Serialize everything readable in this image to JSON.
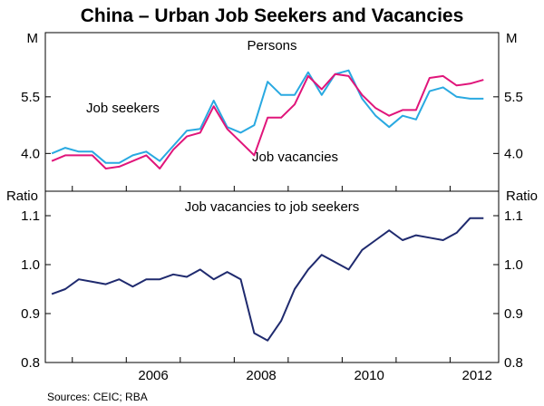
{
  "title": "China – Urban Job Seekers and Vacancies",
  "source": "Sources: CEIC; RBA",
  "colors": {
    "job_seekers": "#29a9e1",
    "job_vacancies": "#e0157a",
    "ratio": "#1f2a6e"
  },
  "chart_data": [
    {
      "type": "line",
      "panel_title": "Persons",
      "ylabel_left": "M",
      "ylabel_right": "M",
      "ylim": [
        3.0,
        7.2
      ],
      "yticks": [
        "4.0",
        "5.5"
      ],
      "ytick_values": [
        4.0,
        5.5
      ],
      "xlim": [
        2004.5,
        2012.9
      ],
      "grid": false,
      "series": [
        {
          "name": "Job seekers",
          "x": [
            2004.62,
            2004.87,
            2005.12,
            2005.37,
            2005.62,
            2005.87,
            2006.12,
            2006.37,
            2006.62,
            2006.87,
            2007.12,
            2007.37,
            2007.62,
            2007.87,
            2008.12,
            2008.37,
            2008.62,
            2008.87,
            2009.12,
            2009.37,
            2009.62,
            2009.87,
            2010.12,
            2010.37,
            2010.62,
            2010.87,
            2011.12,
            2011.37,
            2011.62,
            2011.87,
            2012.12,
            2012.37,
            2012.62
          ],
          "y": [
            4.0,
            4.15,
            4.05,
            4.05,
            3.75,
            3.75,
            3.95,
            4.05,
            3.8,
            4.2,
            4.6,
            4.65,
            5.4,
            4.7,
            4.55,
            4.75,
            5.9,
            5.55,
            5.55,
            6.15,
            5.55,
            6.1,
            6.2,
            5.45,
            5.0,
            4.7,
            5.0,
            4.9,
            5.65,
            5.75,
            5.5,
            5.45,
            5.45
          ]
        },
        {
          "name": "Job vacancies",
          "x": [
            2004.62,
            2004.87,
            2005.12,
            2005.37,
            2005.62,
            2005.87,
            2006.12,
            2006.37,
            2006.62,
            2006.87,
            2007.12,
            2007.37,
            2007.62,
            2007.87,
            2008.12,
            2008.37,
            2008.62,
            2008.87,
            2009.12,
            2009.37,
            2009.62,
            2009.87,
            2010.12,
            2010.37,
            2010.62,
            2010.87,
            2011.12,
            2011.37,
            2011.62,
            2011.87,
            2012.12,
            2012.37,
            2012.62
          ],
          "y": [
            3.8,
            3.95,
            3.95,
            3.95,
            3.6,
            3.65,
            3.8,
            3.95,
            3.6,
            4.1,
            4.45,
            4.55,
            5.25,
            4.65,
            4.3,
            3.95,
            4.95,
            4.95,
            5.3,
            6.05,
            5.7,
            6.1,
            6.05,
            5.55,
            5.2,
            5.0,
            5.15,
            5.15,
            6.0,
            6.05,
            5.8,
            5.85,
            5.95
          ]
        }
      ],
      "annotations": [
        "Job seekers",
        "Job vacancies"
      ]
    },
    {
      "type": "line",
      "panel_title": "Job vacancies to job seekers",
      "ylabel_left": "Ratio",
      "ylabel_right": "Ratio",
      "ylim": [
        0.8,
        1.15
      ],
      "yticks": [
        "0.8",
        "0.9",
        "1.0",
        "1.1"
      ],
      "ytick_values": [
        0.8,
        0.9,
        1.0,
        1.1
      ],
      "xlim": [
        2004.5,
        2012.9
      ],
      "xticks": [
        "2006",
        "2008",
        "2010",
        "2012"
      ],
      "xtick_values": [
        2006.0,
        2008.0,
        2010.0,
        2012.0
      ],
      "grid": false,
      "series": [
        {
          "x": [
            2004.62,
            2004.87,
            2005.12,
            2005.37,
            2005.62,
            2005.87,
            2006.12,
            2006.37,
            2006.62,
            2006.87,
            2007.12,
            2007.37,
            2007.62,
            2007.87,
            2008.12,
            2008.37,
            2008.62,
            2008.87,
            2009.12,
            2009.37,
            2009.62,
            2009.87,
            2010.12,
            2010.37,
            2010.62,
            2010.87,
            2011.12,
            2011.37,
            2011.62,
            2011.87,
            2012.12,
            2012.37,
            2012.62
          ],
          "y": [
            0.94,
            0.95,
            0.97,
            0.965,
            0.96,
            0.97,
            0.955,
            0.97,
            0.97,
            0.98,
            0.975,
            0.99,
            0.97,
            0.985,
            0.97,
            0.86,
            0.845,
            0.885,
            0.95,
            0.99,
            1.02,
            1.005,
            0.99,
            1.03,
            1.05,
            1.07,
            1.05,
            1.06,
            1.055,
            1.05,
            1.065,
            1.095,
            1.095
          ]
        }
      ]
    }
  ]
}
